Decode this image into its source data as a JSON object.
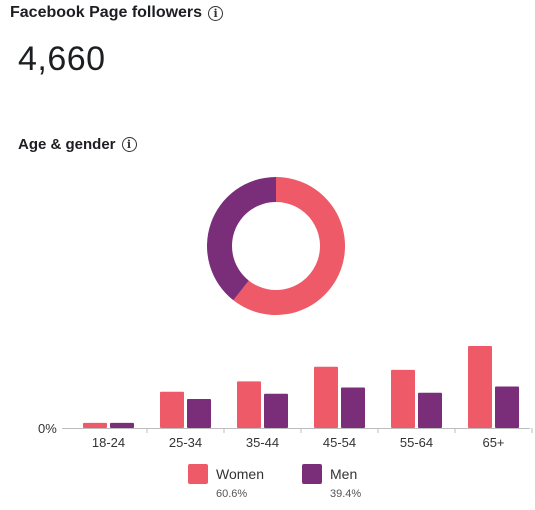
{
  "header": {
    "title": "Facebook Page followers",
    "info_icon": "info-icon",
    "follower_count": "4,660"
  },
  "section": {
    "title": "Age & gender",
    "info_icon": "info-icon"
  },
  "colors": {
    "women": "#ee5a67",
    "men": "#7a2e7a",
    "axis": "#bdbdbd",
    "text": "#333333"
  },
  "chart_data": [
    {
      "type": "pie",
      "variant": "donut",
      "labels": [
        "Women",
        "Men"
      ],
      "values": [
        60.6,
        39.4
      ]
    },
    {
      "type": "bar",
      "categories": [
        "18-24",
        "25-34",
        "35-44",
        "45-54",
        "55-64",
        "65+"
      ],
      "series": [
        {
          "name": "Women",
          "values": [
            0.5,
            3.5,
            4.5,
            5.9,
            5.6,
            7.9
          ]
        },
        {
          "name": "Men",
          "values": [
            0.5,
            2.8,
            3.3,
            3.9,
            3.4,
            4.0
          ]
        }
      ],
      "ytick_labels": [
        "0%"
      ],
      "ylim": [
        0,
        8
      ]
    }
  ],
  "legend": [
    {
      "label": "Women",
      "percent": "60.6%"
    },
    {
      "label": "Men",
      "percent": "39.4%"
    }
  ]
}
